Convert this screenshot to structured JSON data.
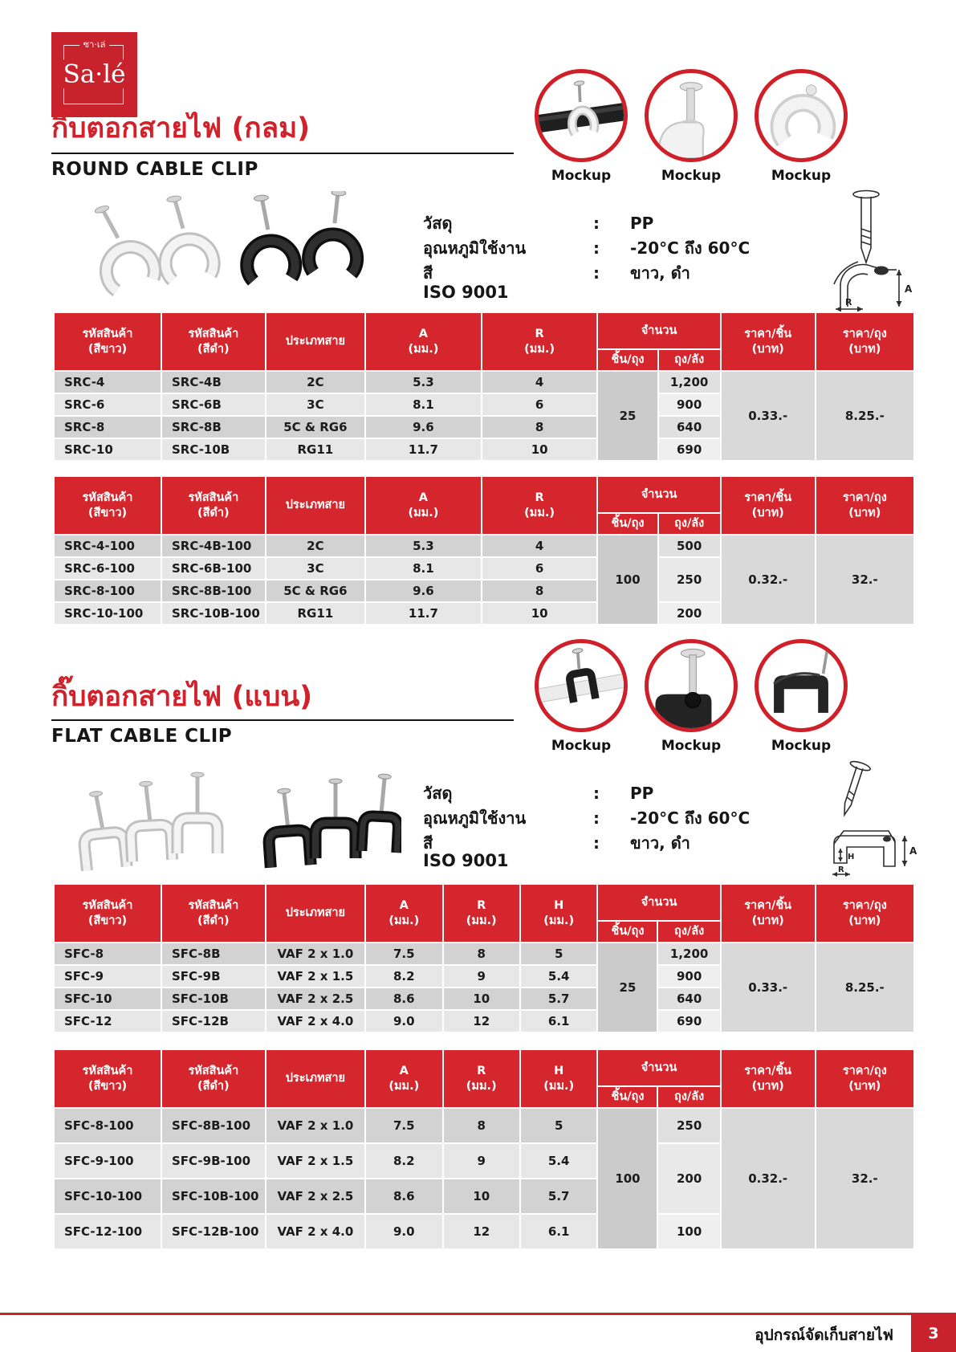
{
  "ui": {
    "colon": ":"
  },
  "logo": {
    "thai": "ซา·เล่",
    "latin": "Sa·lé"
  },
  "colors": {
    "brand_red": "#c8232c",
    "table_header_red": "#d6262d",
    "row_dark": "#d2d2d2",
    "row_light": "#e7e7e7"
  },
  "footer": {
    "label": "อุปกรณ์จัดเก็บสายไฟ",
    "page_number": "3"
  },
  "sections": [
    {
      "id": "round",
      "title_thai": "กิ๊บตอกสายไฟ (กลม)",
      "title_en": "ROUND CABLE CLIP",
      "mockup_label": "Mockup",
      "specs": [
        {
          "label": "วัสดุ",
          "value": "PP"
        },
        {
          "label": "อุณหภูมิใช้งาน",
          "value": "-20°C ถึง 60°C"
        },
        {
          "label": "สี",
          "value": "ขาว, ดำ"
        }
      ],
      "iso": "ISO 9001"
    },
    {
      "id": "flat",
      "title_thai": "กิ๊บตอกสายไฟ (แบน)",
      "title_en": "FLAT CABLE CLIP",
      "mockup_label": "Mockup",
      "specs": [
        {
          "label": "วัสดุ",
          "value": "PP"
        },
        {
          "label": "อุณหภูมิใช้งาน",
          "value": "-20°C ถึง 60°C"
        },
        {
          "label": "สี",
          "value": "ขาว, ดำ"
        }
      ],
      "iso": "ISO 9001"
    }
  ],
  "table_labels": {
    "code_white": "รหัสสินค้า\n(สีขาว)",
    "code_black": "รหัสสินค้า\n(สีดำ)",
    "cable_type": "ประเภทสาย",
    "unit_mm": "(มม.)",
    "quantity": "จำนวน",
    "pcs_per_bag": "ชิ้น/ถุง",
    "bags_per_carton": "ถุง/ลัง",
    "price_per_piece": "ราคา/ชิ้น\n(บาท)",
    "price_per_bag": "ราคา/ถุง\n(บาท)"
  },
  "tables": [
    {
      "section": "round",
      "dims": [
        "A",
        "R"
      ],
      "col_widths": [
        "12.5%",
        "12.1%",
        "11.6%",
        "13.5%",
        "13.5%",
        "7.0%",
        "7.3%",
        "11.0%",
        "11.5%"
      ],
      "rows": [
        {
          "code_white": "SRC-4",
          "code_black": "SRC-4B",
          "type": "2C",
          "dims": [
            "5.3",
            "4"
          ]
        },
        {
          "code_white": "SRC-6",
          "code_black": "SRC-6B",
          "type": "3C",
          "dims": [
            "8.1",
            "6"
          ]
        },
        {
          "code_white": "SRC-8",
          "code_black": "SRC-8B",
          "type": "5C & RG6",
          "dims": [
            "9.6",
            "8"
          ]
        },
        {
          "code_white": "SRC-10",
          "code_black": "SRC-10B",
          "type": "RG11",
          "dims": [
            "11.7",
            "10"
          ]
        }
      ],
      "pcs_per_bag": "25",
      "bags_per_carton": [
        {
          "value": "1,200",
          "span": 1
        },
        {
          "value": "900",
          "span": 1
        },
        {
          "value": "640",
          "span": 1
        },
        {
          "value": "690",
          "span": 1
        }
      ],
      "price_per_piece": "0.33.-",
      "price_per_bag": "8.25.-"
    },
    {
      "section": "round",
      "dims": [
        "A",
        "R"
      ],
      "col_widths": [
        "12.5%",
        "12.1%",
        "11.6%",
        "13.5%",
        "13.5%",
        "7.0%",
        "7.3%",
        "11.0%",
        "11.5%"
      ],
      "rows": [
        {
          "code_white": "SRC-4-100",
          "code_black": "SRC-4B-100",
          "type": "2C",
          "dims": [
            "5.3",
            "4"
          ]
        },
        {
          "code_white": "SRC-6-100",
          "code_black": "SRC-6B-100",
          "type": "3C",
          "dims": [
            "8.1",
            "6"
          ]
        },
        {
          "code_white": "SRC-8-100",
          "code_black": "SRC-8B-100",
          "type": "5C & RG6",
          "dims": [
            "9.6",
            "8"
          ]
        },
        {
          "code_white": "SRC-10-100",
          "code_black": "SRC-10B-100",
          "type": "RG11",
          "dims": [
            "11.7",
            "10"
          ]
        }
      ],
      "pcs_per_bag": "100",
      "bags_per_carton": [
        {
          "value": "500",
          "span": 1
        },
        {
          "value": "250",
          "span": 2
        },
        {
          "value": "200",
          "span": 1
        }
      ],
      "price_per_piece": "0.32.-",
      "price_per_bag": "32.-"
    },
    {
      "section": "flat",
      "dims": [
        "A",
        "R",
        "H"
      ],
      "col_widths": [
        "12.5%",
        "12.1%",
        "11.6%",
        "9.0%",
        "9.0%",
        "9.0%",
        "7.0%",
        "7.3%",
        "11.0%",
        "11.5%"
      ],
      "rows": [
        {
          "code_white": "SFC-8",
          "code_black": "SFC-8B",
          "type": "VAF 2 x 1.0",
          "dims": [
            "7.5",
            "8",
            "5"
          ]
        },
        {
          "code_white": "SFC-9",
          "code_black": "SFC-9B",
          "type": "VAF 2 x 1.5",
          "dims": [
            "8.2",
            "9",
            "5.4"
          ]
        },
        {
          "code_white": "SFC-10",
          "code_black": "SFC-10B",
          "type": "VAF 2 x 2.5",
          "dims": [
            "8.6",
            "10",
            "5.7"
          ]
        },
        {
          "code_white": "SFC-12",
          "code_black": "SFC-12B",
          "type": "VAF 2 x 4.0",
          "dims": [
            "9.0",
            "12",
            "6.1"
          ]
        }
      ],
      "pcs_per_bag": "25",
      "bags_per_carton": [
        {
          "value": "1,200",
          "span": 1
        },
        {
          "value": "900",
          "span": 1
        },
        {
          "value": "640",
          "span": 1
        },
        {
          "value": "690",
          "span": 1
        }
      ],
      "price_per_piece": "0.33.-",
      "price_per_bag": "8.25.-"
    },
    {
      "section": "flat",
      "dims": [
        "A",
        "R",
        "H"
      ],
      "col_widths": [
        "12.5%",
        "12.1%",
        "11.6%",
        "9.0%",
        "9.0%",
        "9.0%",
        "7.0%",
        "7.3%",
        "11.0%",
        "11.5%"
      ],
      "rows": [
        {
          "code_white": "SFC-8-100",
          "code_black": "SFC-8B-100",
          "type": "VAF 2 x 1.0",
          "dims": [
            "7.5",
            "8",
            "5"
          ]
        },
        {
          "code_white": "SFC-9-100",
          "code_black": "SFC-9B-100",
          "type": "VAF 2 x 1.5",
          "dims": [
            "8.2",
            "9",
            "5.4"
          ]
        },
        {
          "code_white": "SFC-10-100",
          "code_black": "SFC-10B-100",
          "type": "VAF 2 x 2.5",
          "dims": [
            "8.6",
            "10",
            "5.7"
          ]
        },
        {
          "code_white": "SFC-12-100",
          "code_black": "SFC-12B-100",
          "type": "VAF 2 x 4.0",
          "dims": [
            "9.0",
            "12",
            "6.1"
          ]
        }
      ],
      "pcs_per_bag": "100",
      "bags_per_carton": [
        {
          "value": "250",
          "span": 1
        },
        {
          "value": "200",
          "span": 2
        },
        {
          "value": "100",
          "span": 1
        }
      ],
      "price_per_piece": "0.32.-",
      "price_per_bag": "32.-"
    }
  ]
}
